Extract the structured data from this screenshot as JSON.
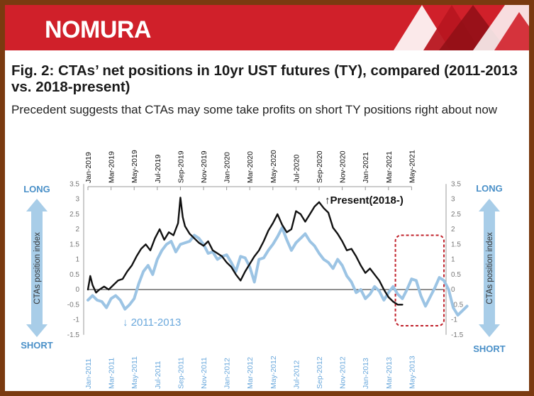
{
  "header": {
    "logo_text": "NOMURA",
    "brand_color": "#d0202a"
  },
  "figure": {
    "title": "Fig. 2: CTAs’ net positions in 10yr UST futures (TY), compared (2011-2013 vs. 2018-present)",
    "subtitle": "Precedent suggests that CTAs may some take profits on short TY positions right about now"
  },
  "chart_data": {
    "type": "line",
    "top_axis_ticks": [
      "Jan-2019",
      "Mar-2019",
      "May-2019",
      "Jul-2019",
      "Sep-2019",
      "Nov-2019",
      "Jan-2020",
      "Mar-2020",
      "May-2020",
      "Jul-2020",
      "Sep-2020",
      "Nov-2020",
      "Jan-2021",
      "Mar-2021",
      "May-2021"
    ],
    "bottom_axis_ticks": [
      "Jan-2011",
      "Mar-2011",
      "May-2011",
      "Jul-2011",
      "Sep-2011",
      "Nov-2011",
      "Jan-2012",
      "Mar-2012",
      "May-2012",
      "Jul-2012",
      "Sep-2012",
      "Nov-2012",
      "Jan-2013",
      "Mar-2013",
      "May-2013"
    ],
    "y_ticks": [
      "3.5",
      "3",
      "2.5",
      "2",
      "1.5",
      "1",
      "0.5",
      "0",
      "-0.5",
      "-1",
      "-1.5"
    ],
    "ylim": [
      -1.5,
      3.5
    ],
    "left_axis_label": "CTAs position index",
    "right_axis_label": "CTAs position index",
    "long_label": "LONG",
    "short_label": "SHORT",
    "series": [
      {
        "name": "Present(2018-)",
        "arrow": "↑",
        "color": "#111111",
        "x": [
          0,
          0.1,
          0.2,
          0.35,
          0.5,
          0.7,
          0.9,
          1.1,
          1.3,
          1.5,
          1.7,
          1.9,
          2.1,
          2.3,
          2.5,
          2.7,
          2.9,
          3.1,
          3.3,
          3.5,
          3.7,
          3.9,
          4.0,
          4.1,
          4.2,
          4.4,
          4.6,
          4.8,
          5.0,
          5.2,
          5.4,
          5.6,
          5.8,
          6.0,
          6.2,
          6.4,
          6.6,
          6.8,
          7.0,
          7.2,
          7.4,
          7.6,
          7.8,
          8.0,
          8.2,
          8.4,
          8.6,
          8.8,
          9.0,
          9.2,
          9.4,
          9.6,
          9.8,
          10.0,
          10.2,
          10.4,
          10.6,
          10.8,
          11.0,
          11.2,
          11.4,
          11.6,
          11.8,
          12.0,
          12.2,
          12.4,
          12.6,
          12.8,
          13.0,
          13.2,
          13.4,
          13.6
        ],
        "values": [
          0.0,
          0.45,
          0.15,
          -0.1,
          0.0,
          0.1,
          0.0,
          0.15,
          0.3,
          0.35,
          0.6,
          0.8,
          1.1,
          1.35,
          1.5,
          1.3,
          1.7,
          2.0,
          1.65,
          1.9,
          1.8,
          2.2,
          3.05,
          2.4,
          2.1,
          1.85,
          1.7,
          1.55,
          1.45,
          1.6,
          1.3,
          1.2,
          1.1,
          0.9,
          0.75,
          0.5,
          0.3,
          0.6,
          0.85,
          1.1,
          1.3,
          1.6,
          1.95,
          2.2,
          2.5,
          2.15,
          1.9,
          2.0,
          2.6,
          2.5,
          2.25,
          2.5,
          2.75,
          2.9,
          2.7,
          2.55,
          2.05,
          1.85,
          1.6,
          1.3,
          1.35,
          1.1,
          0.8,
          0.55,
          0.7,
          0.5,
          0.3,
          0.0,
          -0.25,
          -0.4,
          -0.5,
          -0.5
        ]
      },
      {
        "name": "2011-2013",
        "arrow": "↓",
        "color": "#9cc4e4",
        "x": [
          0,
          0.2,
          0.4,
          0.6,
          0.8,
          1.0,
          1.2,
          1.4,
          1.6,
          1.8,
          2.0,
          2.2,
          2.4,
          2.6,
          2.8,
          3.0,
          3.2,
          3.4,
          3.6,
          3.8,
          4.0,
          4.2,
          4.4,
          4.6,
          4.8,
          5.0,
          5.2,
          5.4,
          5.6,
          5.8,
          6.0,
          6.2,
          6.4,
          6.6,
          6.8,
          7.0,
          7.2,
          7.4,
          7.6,
          7.8,
          8.0,
          8.2,
          8.4,
          8.6,
          8.8,
          9.0,
          9.2,
          9.4,
          9.6,
          9.8,
          10.0,
          10.2,
          10.4,
          10.6,
          10.8,
          11.0,
          11.2,
          11.4,
          11.6,
          11.8,
          12.0,
          12.2,
          12.4,
          12.6,
          12.8,
          13.0,
          13.2,
          13.4,
          13.6,
          13.8,
          14.0,
          14.2,
          14.4,
          14.6,
          14.8,
          15.0,
          15.2,
          15.4,
          15.6,
          15.8,
          16.0,
          16.2,
          16.4
        ],
        "values": [
          -0.35,
          -0.2,
          -0.35,
          -0.4,
          -0.6,
          -0.3,
          -0.2,
          -0.35,
          -0.65,
          -0.5,
          -0.3,
          0.2,
          0.6,
          0.8,
          0.5,
          1.0,
          1.3,
          1.5,
          1.6,
          1.25,
          1.5,
          1.55,
          1.6,
          1.8,
          1.7,
          1.5,
          1.2,
          1.25,
          1.0,
          1.1,
          1.15,
          0.9,
          0.6,
          1.1,
          1.05,
          0.75,
          0.25,
          1.0,
          1.05,
          1.3,
          1.5,
          1.75,
          2.05,
          1.65,
          1.3,
          1.55,
          1.7,
          1.85,
          1.6,
          1.45,
          1.2,
          1.0,
          0.9,
          0.7,
          1.0,
          0.8,
          0.45,
          0.25,
          -0.1,
          0.0,
          -0.3,
          -0.15,
          0.1,
          -0.05,
          -0.35,
          -0.1,
          0.1,
          -0.15,
          -0.3,
          0.0,
          0.35,
          0.3,
          -0.2,
          -0.55,
          -0.25,
          0.05,
          0.4,
          0.3,
          0.0,
          -0.6,
          -0.85,
          -0.7,
          -0.55
        ]
      }
    ],
    "highlight_box": {
      "x_range": [
        13.3,
        15.4
      ],
      "y_range": [
        -1.2,
        1.8
      ],
      "color": "#c0202a"
    },
    "line_colors": {
      "axis_gray": "#999999",
      "arrow_blue": "#a8cde8",
      "label_blue": "#4a90c8"
    }
  }
}
